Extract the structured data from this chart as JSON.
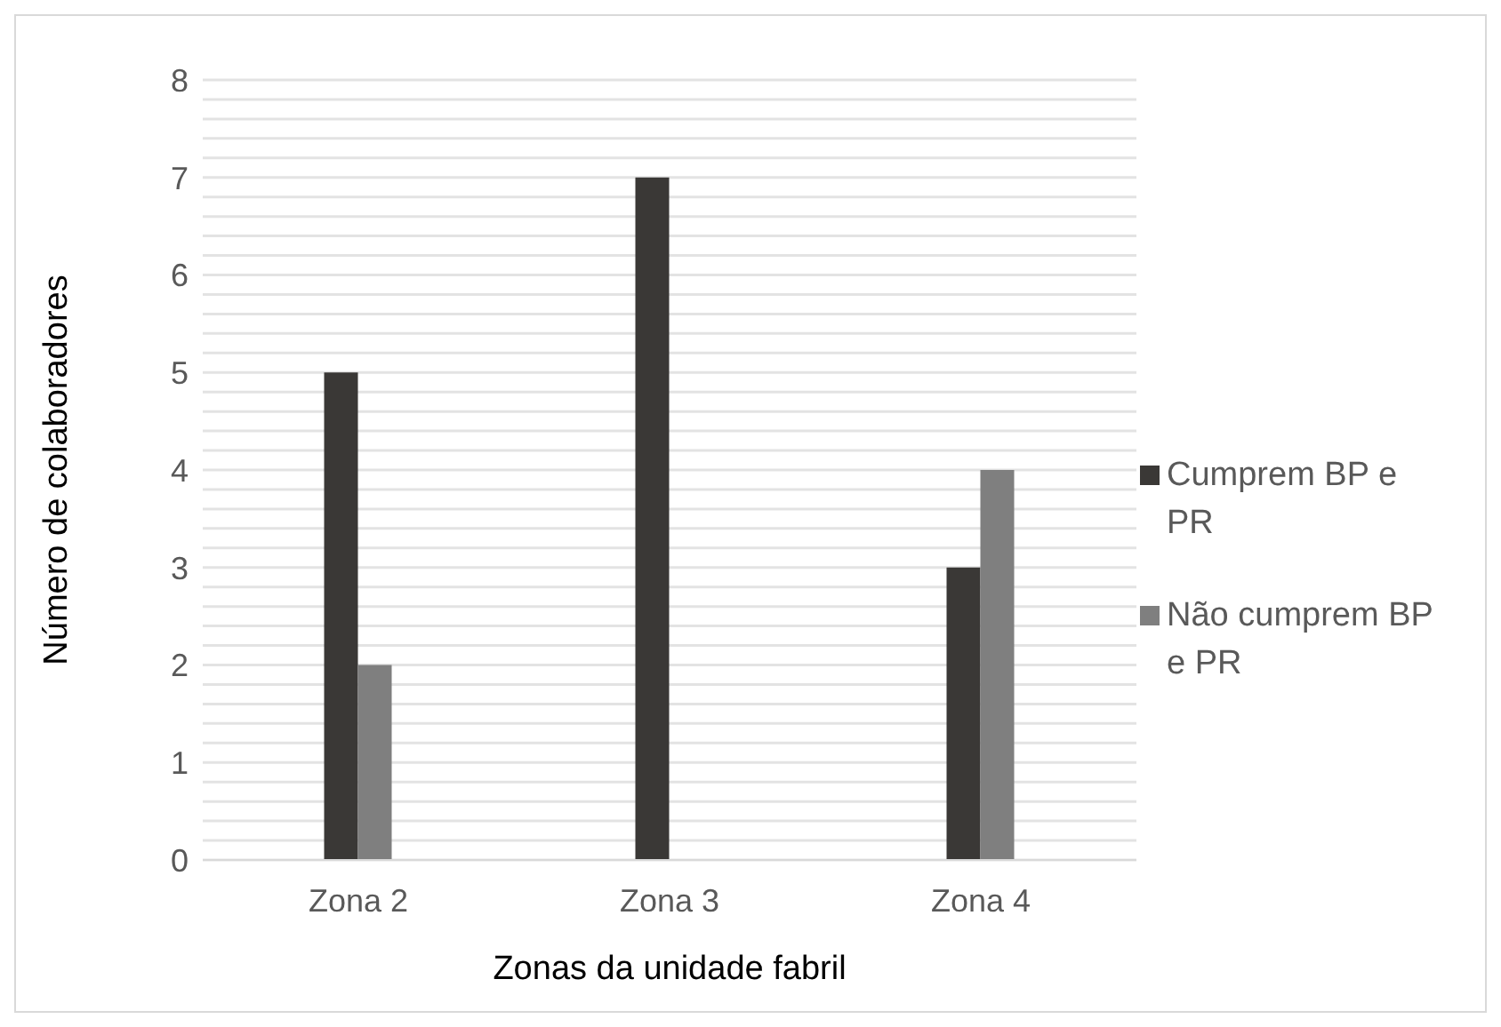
{
  "chart_data": {
    "type": "bar",
    "xlabel": "Zonas da unidade fabril",
    "ylabel": "Número de colaboradores",
    "categories": [
      "Zona 2",
      "Zona 3",
      "Zona 4"
    ],
    "series": [
      {
        "name": "Cumprem BP e PR",
        "color": "#3a3836",
        "values": [
          5,
          7,
          3
        ]
      },
      {
        "name": "Não cumprem BP e PR",
        "color": "#7f7f7f",
        "values": [
          2,
          0,
          4
        ]
      }
    ],
    "ylim": [
      0,
      8
    ],
    "yticks": [
      0,
      {
        "value": 0.2,
        "label": null
      },
      {
        "value": 0.4,
        "label": null
      },
      {
        "value": 0.6,
        "label": null
      },
      {
        "value": 0.8,
        "label": null
      },
      1,
      {
        "value": 1.2,
        "label": null
      },
      {
        "value": 1.4,
        "label": null
      },
      {
        "value": 1.6,
        "label": null
      },
      {
        "value": 1.8,
        "label": null
      },
      2,
      {
        "value": 2.2,
        "label": null
      },
      {
        "value": 2.4,
        "label": null
      },
      {
        "value": 2.6,
        "label": null
      },
      {
        "value": 2.8,
        "label": null
      },
      3,
      {
        "value": 3.2,
        "label": null
      },
      {
        "value": 3.4,
        "label": null
      },
      {
        "value": 3.6,
        "label": null
      },
      {
        "value": 3.8,
        "label": null
      },
      4,
      {
        "value": 4.2,
        "label": null
      },
      {
        "value": 4.4,
        "label": null
      },
      {
        "value": 4.6,
        "label": null
      },
      {
        "value": 4.8,
        "label": null
      },
      5,
      {
        "value": 5.2,
        "label": null
      },
      {
        "value": 5.4,
        "label": null
      },
      {
        "value": 5.6,
        "label": null
      },
      {
        "value": 5.8,
        "label": null
      },
      6,
      {
        "value": 6.2,
        "label": null
      },
      {
        "value": 6.4,
        "label": null
      },
      {
        "value": 6.6,
        "label": null
      },
      {
        "value": 6.8,
        "label": null
      },
      7,
      {
        "value": 7.2,
        "label": null
      },
      {
        "value": 7.4,
        "label": null
      },
      {
        "value": 7.6,
        "label": null
      },
      {
        "value": 7.8,
        "label": null
      },
      8
    ],
    "grid": "y",
    "legend": "right"
  }
}
